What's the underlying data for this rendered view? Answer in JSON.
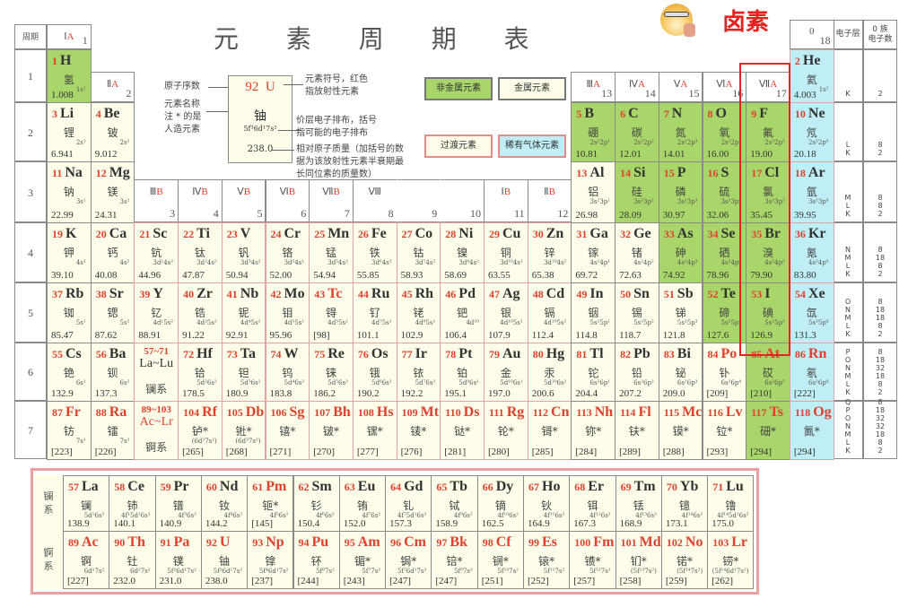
{
  "title": "元 素 周 期 表",
  "annotation": {
    "label": "卤素",
    "color": "#e8231f",
    "emoji": "doge-pointing-emoji"
  },
  "colors": {
    "nonmetal": "#a8d66a",
    "metal": "#fdfdea",
    "noble_gas": "#bfeef6",
    "radioactive_text": "#e0402e",
    "transition_border": "#e7a3a3",
    "highlight": "#e8231f"
  },
  "period_header": "周期",
  "periods": [
    "1",
    "2",
    "3",
    "4",
    "5",
    "6",
    "7"
  ],
  "shell_header": "电子层",
  "electron_count_header": "0 族\n电子数",
  "shells": [
    {
      "layers": "K",
      "counts": "2"
    },
    {
      "layers": "L\nK",
      "counts": "8\n2"
    },
    {
      "layers": "M\nL\nK",
      "counts": "8\n8\n2"
    },
    {
      "layers": "N\nM\nL\nK",
      "counts": "8\n18\n8\n2"
    },
    {
      "layers": "O\nN\nM\nL\nK",
      "counts": "8\n18\n18\n8\n2"
    },
    {
      "layers": "P\nO\nN\nM\nL\nK",
      "counts": "8\n18\n32\n18\n8\n2"
    },
    {
      "layers": "Q\nP\nO\nN\nM\nL\nK",
      "counts": "8\n18\n32\n32\n18\n8\n2"
    }
  ],
  "groups": [
    {
      "roman": "Ⅰ",
      "letter": "A",
      "num": "1"
    },
    {
      "roman": "Ⅱ",
      "letter": "A",
      "num": "2"
    },
    {
      "roman": "Ⅲ",
      "letter": "B",
      "num": "3"
    },
    {
      "roman": "Ⅳ",
      "letter": "B",
      "num": "4"
    },
    {
      "roman": "Ⅴ",
      "letter": "B",
      "num": "5"
    },
    {
      "roman": "Ⅵ",
      "letter": "B",
      "num": "6"
    },
    {
      "roman": "Ⅶ",
      "letter": "B",
      "num": "7"
    },
    {
      "roman": "Ⅷ",
      "letter": "",
      "num": "8"
    },
    {
      "roman": "",
      "letter": "",
      "num": "9"
    },
    {
      "roman": "",
      "letter": "",
      "num": "10"
    },
    {
      "roman": "Ⅰ",
      "letter": "B",
      "num": "11"
    },
    {
      "roman": "Ⅱ",
      "letter": "B",
      "num": "12"
    },
    {
      "roman": "Ⅲ",
      "letter": "A",
      "num": "13"
    },
    {
      "roman": "Ⅳ",
      "letter": "A",
      "num": "14"
    },
    {
      "roman": "Ⅴ",
      "letter": "A",
      "num": "15"
    },
    {
      "roman": "Ⅵ",
      "letter": "A",
      "num": "16"
    },
    {
      "roman": "Ⅶ",
      "letter": "A",
      "num": "17"
    },
    {
      "roman": "0",
      "letter": "",
      "num": "18"
    }
  ],
  "legend": {
    "sample": {
      "z": "92",
      "symbol": "U",
      "name": "铀",
      "config": "5f³6d¹7s²",
      "mass": "238.0"
    },
    "label_z": "原子序数",
    "label_name": "元素名称\n注 * 的是\n人造元素",
    "label_symbol": "元素符号，红色\n指放射性元素",
    "label_config": "价层电子排布，括号\n指可能的电子排布",
    "label_mass": "相对原子质量（加括号的数\n据为该放射性元素半衰期最\n长同位素的质量数）",
    "nonmetal": "非金属元素",
    "metal": "金属元素",
    "transition": "过渡元素",
    "noble": "稀有气体元素"
  },
  "elements": [
    {
      "z": "1",
      "s": "H",
      "n": "氢",
      "c": "1s¹",
      "m": "1.008",
      "p": 1,
      "g": 1,
      "cat": "n"
    },
    {
      "z": "2",
      "s": "He",
      "n": "氦",
      "c": "1s²",
      "m": "4.003",
      "p": 1,
      "g": 18,
      "cat": "g"
    },
    {
      "z": "3",
      "s": "Li",
      "n": "锂",
      "c": "2s¹",
      "m": "6.941",
      "p": 2,
      "g": 1,
      "cat": "m"
    },
    {
      "z": "4",
      "s": "Be",
      "n": "铍",
      "c": "2s²",
      "m": "9.012",
      "p": 2,
      "g": 2,
      "cat": "m"
    },
    {
      "z": "5",
      "s": "B",
      "n": "硼",
      "c": "2s²2p¹",
      "m": "10.81",
      "p": 2,
      "g": 13,
      "cat": "n"
    },
    {
      "z": "6",
      "s": "C",
      "n": "碳",
      "c": "2s²2p²",
      "m": "12.01",
      "p": 2,
      "g": 14,
      "cat": "n"
    },
    {
      "z": "7",
      "s": "N",
      "n": "氮",
      "c": "2s²2p³",
      "m": "14.01",
      "p": 2,
      "g": 15,
      "cat": "n"
    },
    {
      "z": "8",
      "s": "O",
      "n": "氧",
      "c": "2s²2p⁴",
      "m": "16.00",
      "p": 2,
      "g": 16,
      "cat": "n"
    },
    {
      "z": "9",
      "s": "F",
      "n": "氟",
      "c": "2s²2p⁵",
      "m": "19.00",
      "p": 2,
      "g": 17,
      "cat": "n"
    },
    {
      "z": "10",
      "s": "Ne",
      "n": "氖",
      "c": "2s²2p⁶",
      "m": "20.18",
      "p": 2,
      "g": 18,
      "cat": "g"
    },
    {
      "z": "11",
      "s": "Na",
      "n": "钠",
      "c": "3s¹",
      "m": "22.99",
      "p": 3,
      "g": 1,
      "cat": "m"
    },
    {
      "z": "12",
      "s": "Mg",
      "n": "镁",
      "c": "3s²",
      "m": "24.31",
      "p": 3,
      "g": 2,
      "cat": "m"
    },
    {
      "z": "13",
      "s": "Al",
      "n": "铝",
      "c": "3s²3p¹",
      "m": "26.98",
      "p": 3,
      "g": 13,
      "cat": "m"
    },
    {
      "z": "14",
      "s": "Si",
      "n": "硅",
      "c": "3s²3p²",
      "m": "28.09",
      "p": 3,
      "g": 14,
      "cat": "n"
    },
    {
      "z": "15",
      "s": "P",
      "n": "磷",
      "c": "3s²3p³",
      "m": "30.97",
      "p": 3,
      "g": 15,
      "cat": "n"
    },
    {
      "z": "16",
      "s": "S",
      "n": "硫",
      "c": "3s²3p⁴",
      "m": "32.06",
      "p": 3,
      "g": 16,
      "cat": "n"
    },
    {
      "z": "17",
      "s": "Cl",
      "n": "氯",
      "c": "3s²3p⁵",
      "m": "35.45",
      "p": 3,
      "g": 17,
      "cat": "n"
    },
    {
      "z": "18",
      "s": "Ar",
      "n": "氩",
      "c": "3s²3p⁶",
      "m": "39.95",
      "p": 3,
      "g": 18,
      "cat": "g"
    },
    {
      "z": "19",
      "s": "K",
      "n": "钾",
      "c": "4s¹",
      "m": "39.10",
      "p": 4,
      "g": 1,
      "cat": "m"
    },
    {
      "z": "20",
      "s": "Ca",
      "n": "钙",
      "c": "4s²",
      "m": "40.08",
      "p": 4,
      "g": 2,
      "cat": "m"
    },
    {
      "z": "21",
      "s": "Sc",
      "n": "钪",
      "c": "3d¹4s²",
      "m": "44.96",
      "p": 4,
      "g": 3,
      "cat": "t"
    },
    {
      "z": "22",
      "s": "Ti",
      "n": "钛",
      "c": "3d²4s²",
      "m": "47.87",
      "p": 4,
      "g": 4,
      "cat": "t"
    },
    {
      "z": "23",
      "s": "V",
      "n": "钒",
      "c": "3d³4s²",
      "m": "50.94",
      "p": 4,
      "g": 5,
      "cat": "t"
    },
    {
      "z": "24",
      "s": "Cr",
      "n": "铬",
      "c": "3d⁵4s¹",
      "m": "52.00",
      "p": 4,
      "g": 6,
      "cat": "t"
    },
    {
      "z": "25",
      "s": "Mn",
      "n": "锰",
      "c": "3d⁵4s²",
      "m": "54.94",
      "p": 4,
      "g": 7,
      "cat": "t"
    },
    {
      "z": "26",
      "s": "Fe",
      "n": "铁",
      "c": "3d⁶4s²",
      "m": "55.85",
      "p": 4,
      "g": 8,
      "cat": "t"
    },
    {
      "z": "27",
      "s": "Co",
      "n": "钴",
      "c": "3d⁷4s²",
      "m": "58.93",
      "p": 4,
      "g": 9,
      "cat": "t"
    },
    {
      "z": "28",
      "s": "Ni",
      "n": "镍",
      "c": "3d⁸4s²",
      "m": "58.69",
      "p": 4,
      "g": 10,
      "cat": "t"
    },
    {
      "z": "29",
      "s": "Cu",
      "n": "铜",
      "c": "3d¹⁰4s¹",
      "m": "63.55",
      "p": 4,
      "g": 11,
      "cat": "t"
    },
    {
      "z": "30",
      "s": "Zn",
      "n": "锌",
      "c": "3d¹⁰4s²",
      "m": "65.38",
      "p": 4,
      "g": 12,
      "cat": "t"
    },
    {
      "z": "31",
      "s": "Ga",
      "n": "镓",
      "c": "4s²4p¹",
      "m": "69.72",
      "p": 4,
      "g": 13,
      "cat": "m"
    },
    {
      "z": "32",
      "s": "Ge",
      "n": "锗",
      "c": "4s²4p²",
      "m": "72.63",
      "p": 4,
      "g": 14,
      "cat": "m"
    },
    {
      "z": "33",
      "s": "As",
      "n": "砷",
      "c": "4s²4p³",
      "m": "74.92",
      "p": 4,
      "g": 15,
      "cat": "n"
    },
    {
      "z": "34",
      "s": "Se",
      "n": "硒",
      "c": "4s²4p⁴",
      "m": "78.96",
      "p": 4,
      "g": 16,
      "cat": "n"
    },
    {
      "z": "35",
      "s": "Br",
      "n": "溴",
      "c": "4s²4p⁵",
      "m": "79.90",
      "p": 4,
      "g": 17,
      "cat": "n"
    },
    {
      "z": "36",
      "s": "Kr",
      "n": "氪",
      "c": "4s²4p⁶",
      "m": "83.80",
      "p": 4,
      "g": 18,
      "cat": "g"
    },
    {
      "z": "37",
      "s": "Rb",
      "n": "铷",
      "c": "5s¹",
      "m": "85.47",
      "p": 5,
      "g": 1,
      "cat": "m"
    },
    {
      "z": "38",
      "s": "Sr",
      "n": "锶",
      "c": "5s²",
      "m": "87.62",
      "p": 5,
      "g": 2,
      "cat": "m"
    },
    {
      "z": "39",
      "s": "Y",
      "n": "钇",
      "c": "4d¹5s²",
      "m": "88.91",
      "p": 5,
      "g": 3,
      "cat": "t"
    },
    {
      "z": "40",
      "s": "Zr",
      "n": "锆",
      "c": "4d²5s²",
      "m": "91.22",
      "p": 5,
      "g": 4,
      "cat": "t"
    },
    {
      "z": "41",
      "s": "Nb",
      "n": "铌",
      "c": "4d⁴5s¹",
      "m": "92.91",
      "p": 5,
      "g": 5,
      "cat": "t"
    },
    {
      "z": "42",
      "s": "Mo",
      "n": "钼",
      "c": "4d⁵5s¹",
      "m": "95.96",
      "p": 5,
      "g": 6,
      "cat": "t"
    },
    {
      "z": "43",
      "s": "Tc",
      "n": "锝",
      "c": "4d⁵5s²",
      "m": "[98]",
      "p": 5,
      "g": 7,
      "cat": "t",
      "r": 1
    },
    {
      "z": "44",
      "s": "Ru",
      "n": "钌",
      "c": "4d⁷5s¹",
      "m": "101.1",
      "p": 5,
      "g": 8,
      "cat": "t"
    },
    {
      "z": "45",
      "s": "Rh",
      "n": "铑",
      "c": "4d⁸5s¹",
      "m": "102.9",
      "p": 5,
      "g": 9,
      "cat": "t"
    },
    {
      "z": "46",
      "s": "Pd",
      "n": "钯",
      "c": "4d¹⁰",
      "m": "106.4",
      "p": 5,
      "g": 10,
      "cat": "t"
    },
    {
      "z": "47",
      "s": "Ag",
      "n": "银",
      "c": "4d¹⁰5s¹",
      "m": "107.9",
      "p": 5,
      "g": 11,
      "cat": "t"
    },
    {
      "z": "48",
      "s": "Cd",
      "n": "镉",
      "c": "4d¹⁰5s²",
      "m": "112.4",
      "p": 5,
      "g": 12,
      "cat": "t"
    },
    {
      "z": "49",
      "s": "In",
      "n": "铟",
      "c": "5s²5p¹",
      "m": "114.8",
      "p": 5,
      "g": 13,
      "cat": "m"
    },
    {
      "z": "50",
      "s": "Sn",
      "n": "锡",
      "c": "5s²5p²",
      "m": "118.7",
      "p": 5,
      "g": 14,
      "cat": "m"
    },
    {
      "z": "51",
      "s": "Sb",
      "n": "锑",
      "c": "5s²5p³",
      "m": "121.8",
      "p": 5,
      "g": 15,
      "cat": "m"
    },
    {
      "z": "52",
      "s": "Te",
      "n": "碲",
      "c": "5s²5p⁴",
      "m": "127.6",
      "p": 5,
      "g": 16,
      "cat": "n"
    },
    {
      "z": "53",
      "s": "I",
      "n": "碘",
      "c": "5s²5p⁵",
      "m": "126.9",
      "p": 5,
      "g": 17,
      "cat": "n"
    },
    {
      "z": "54",
      "s": "Xe",
      "n": "氙",
      "c": "5s²5p⁶",
      "m": "131.3",
      "p": 5,
      "g": 18,
      "cat": "g"
    },
    {
      "z": "55",
      "s": "Cs",
      "n": "铯",
      "c": "6s¹",
      "m": "132.9",
      "p": 6,
      "g": 1,
      "cat": "m"
    },
    {
      "z": "56",
      "s": "Ba",
      "n": "钡",
      "c": "6s²",
      "m": "137.3",
      "p": 6,
      "g": 2,
      "cat": "m"
    },
    {
      "z": "57~71",
      "s": "La~Lu",
      "n": "镧系",
      "c": "",
      "m": "",
      "p": 6,
      "g": 3,
      "cat": "t",
      "series": 1
    },
    {
      "z": "72",
      "s": "Hf",
      "n": "铪",
      "c": "5d²6s²",
      "m": "178.5",
      "p": 6,
      "g": 4,
      "cat": "t"
    },
    {
      "z": "73",
      "s": "Ta",
      "n": "钽",
      "c": "5d³6s²",
      "m": "180.9",
      "p": 6,
      "g": 5,
      "cat": "t"
    },
    {
      "z": "74",
      "s": "W",
      "n": "钨",
      "c": "5d⁴6s²",
      "m": "183.8",
      "p": 6,
      "g": 6,
      "cat": "t"
    },
    {
      "z": "75",
      "s": "Re",
      "n": "铼",
      "c": "5d⁵6s²",
      "m": "186.2",
      "p": 6,
      "g": 7,
      "cat": "t"
    },
    {
      "z": "76",
      "s": "Os",
      "n": "锇",
      "c": "5d⁶6s²",
      "m": "190.2",
      "p": 6,
      "g": 8,
      "cat": "t"
    },
    {
      "z": "77",
      "s": "Ir",
      "n": "铱",
      "c": "5d⁷6s²",
      "m": "192.2",
      "p": 6,
      "g": 9,
      "cat": "t"
    },
    {
      "z": "78",
      "s": "Pt",
      "n": "铂",
      "c": "5d⁹6s¹",
      "m": "195.1",
      "p": 6,
      "g": 10,
      "cat": "t"
    },
    {
      "z": "79",
      "s": "Au",
      "n": "金",
      "c": "5d¹⁰6s¹",
      "m": "197.0",
      "p": 6,
      "g": 11,
      "cat": "t"
    },
    {
      "z": "80",
      "s": "Hg",
      "n": "汞",
      "c": "5d¹⁰6s²",
      "m": "200.6",
      "p": 6,
      "g": 12,
      "cat": "t"
    },
    {
      "z": "81",
      "s": "Tl",
      "n": "铊",
      "c": "6s²6p¹",
      "m": "204.4",
      "p": 6,
      "g": 13,
      "cat": "m"
    },
    {
      "z": "82",
      "s": "Pb",
      "n": "铅",
      "c": "6s²6p²",
      "m": "207.2",
      "p": 6,
      "g": 14,
      "cat": "m"
    },
    {
      "z": "83",
      "s": "Bi",
      "n": "铋",
      "c": "6s²6p³",
      "m": "209.0",
      "p": 6,
      "g": 15,
      "cat": "m"
    },
    {
      "z": "84",
      "s": "Po",
      "n": "钋",
      "c": "6s²6p⁴",
      "m": "[209]",
      "p": 6,
      "g": 16,
      "cat": "m",
      "r": 1
    },
    {
      "z": "85",
      "s": "At",
      "n": "砹",
      "c": "6s²6p⁵",
      "m": "[210]",
      "p": 6,
      "g": 17,
      "cat": "n",
      "r": 1
    },
    {
      "z": "86",
      "s": "Rn",
      "n": "氡",
      "c": "6s²6p⁶",
      "m": "[222]",
      "p": 6,
      "g": 18,
      "cat": "g",
      "r": 1
    },
    {
      "z": "87",
      "s": "Fr",
      "n": "钫",
      "c": "7s¹",
      "m": "[223]",
      "p": 7,
      "g": 1,
      "cat": "m",
      "r": 1
    },
    {
      "z": "88",
      "s": "Ra",
      "n": "镭",
      "c": "7s²",
      "m": "[226]",
      "p": 7,
      "g": 2,
      "cat": "m",
      "r": 1
    },
    {
      "z": "89~103",
      "s": "Ac~Lr",
      "n": "锕系",
      "c": "",
      "m": "",
      "p": 7,
      "g": 3,
      "cat": "t",
      "series": 1,
      "r": 1
    },
    {
      "z": "104",
      "s": "Rf",
      "n": "𬬻*",
      "c": "(6d²7s²)",
      "m": "[265]",
      "p": 7,
      "g": 4,
      "cat": "t",
      "r": 1
    },
    {
      "z": "105",
      "s": "Db",
      "n": "𬭊*",
      "c": "(6d³7s²)",
      "m": "[268]",
      "p": 7,
      "g": 5,
      "cat": "t",
      "r": 1
    },
    {
      "z": "106",
      "s": "Sg",
      "n": "𬭳*",
      "c": "",
      "m": "[271]",
      "p": 7,
      "g": 6,
      "cat": "t",
      "r": 1
    },
    {
      "z": "107",
      "s": "Bh",
      "n": "𬭛*",
      "c": "",
      "m": "[270]",
      "p": 7,
      "g": 7,
      "cat": "t",
      "r": 1
    },
    {
      "z": "108",
      "s": "Hs",
      "n": "𬭶*",
      "c": "",
      "m": "[277]",
      "p": 7,
      "g": 8,
      "cat": "t",
      "r": 1
    },
    {
      "z": "109",
      "s": "Mt",
      "n": "鿏*",
      "c": "",
      "m": "[276]",
      "p": 7,
      "g": 9,
      "cat": "t",
      "r": 1
    },
    {
      "z": "110",
      "s": "Ds",
      "n": "𫟼*",
      "c": "",
      "m": "[281]",
      "p": 7,
      "g": 10,
      "cat": "t",
      "r": 1
    },
    {
      "z": "111",
      "s": "Rg",
      "n": "𬬭*",
      "c": "",
      "m": "[280]",
      "p": 7,
      "g": 11,
      "cat": "t",
      "r": 1
    },
    {
      "z": "112",
      "s": "Cn",
      "n": "鿔*",
      "c": "",
      "m": "[285]",
      "p": 7,
      "g": 12,
      "cat": "t",
      "r": 1
    },
    {
      "z": "113",
      "s": "Nh",
      "n": "鿭*",
      "c": "",
      "m": "[284]",
      "p": 7,
      "g": 13,
      "cat": "m",
      "r": 1
    },
    {
      "z": "114",
      "s": "Fl",
      "n": "𫓧*",
      "c": "",
      "m": "[289]",
      "p": 7,
      "g": 14,
      "cat": "m",
      "r": 1
    },
    {
      "z": "115",
      "s": "Mc",
      "n": "镆*",
      "c": "",
      "m": "[288]",
      "p": 7,
      "g": 15,
      "cat": "m",
      "r": 1
    },
    {
      "z": "116",
      "s": "Lv",
      "n": "𫟷*",
      "c": "",
      "m": "[293]",
      "p": 7,
      "g": 16,
      "cat": "m",
      "r": 1
    },
    {
      "z": "117",
      "s": "Ts",
      "n": "鿬*",
      "c": "",
      "m": "[294]",
      "p": 7,
      "g": 17,
      "cat": "n",
      "r": 1
    },
    {
      "z": "118",
      "s": "Og",
      "n": "鿫*",
      "c": "",
      "m": "[294]",
      "p": 7,
      "g": 18,
      "cat": "g",
      "r": 1
    }
  ],
  "lanthanide_label": "镧\n系",
  "actinide_label": "锕\n系",
  "lanthanides": [
    {
      "z": "57",
      "s": "La",
      "n": "镧",
      "c": "5d¹6s²",
      "m": "138.9"
    },
    {
      "z": "58",
      "s": "Ce",
      "n": "铈",
      "c": "4f¹5d¹6s²",
      "m": "140.1"
    },
    {
      "z": "59",
      "s": "Pr",
      "n": "镨",
      "c": "4f³6s²",
      "m": "140.9"
    },
    {
      "z": "60",
      "s": "Nd",
      "n": "钕",
      "c": "4f⁴6s²",
      "m": "144.2"
    },
    {
      "z": "61",
      "s": "Pm",
      "n": "钷*",
      "c": "4f⁵6s²",
      "m": "[145]",
      "r": 1
    },
    {
      "z": "62",
      "s": "Sm",
      "n": "钐",
      "c": "4f⁶6s²",
      "m": "150.4"
    },
    {
      "z": "63",
      "s": "Eu",
      "n": "铕",
      "c": "4f⁷6s²",
      "m": "152.0"
    },
    {
      "z": "64",
      "s": "Gd",
      "n": "钆",
      "c": "4f⁷5d¹6s²",
      "m": "157.3"
    },
    {
      "z": "65",
      "s": "Tb",
      "n": "铽",
      "c": "4f⁹6s²",
      "m": "158.9"
    },
    {
      "z": "66",
      "s": "Dy",
      "n": "镝",
      "c": "4f¹⁰6s²",
      "m": "162.5"
    },
    {
      "z": "67",
      "s": "Ho",
      "n": "钬",
      "c": "4f¹¹6s²",
      "m": "164.9"
    },
    {
      "z": "68",
      "s": "Er",
      "n": "铒",
      "c": "4f¹²6s²",
      "m": "167.3"
    },
    {
      "z": "69",
      "s": "Tm",
      "n": "铥",
      "c": "4f¹³6s²",
      "m": "168.9"
    },
    {
      "z": "70",
      "s": "Yb",
      "n": "镱",
      "c": "4f¹⁴6s²",
      "m": "173.1"
    },
    {
      "z": "71",
      "s": "Lu",
      "n": "镥",
      "c": "4f¹⁴5d¹6s²",
      "m": "175.0"
    }
  ],
  "actinides": [
    {
      "z": "89",
      "s": "Ac",
      "n": "锕",
      "c": "6d¹7s²",
      "m": "[227]",
      "r": 1
    },
    {
      "z": "90",
      "s": "Th",
      "n": "钍",
      "c": "6d²7s²",
      "m": "232.0",
      "r": 1
    },
    {
      "z": "91",
      "s": "Pa",
      "n": "镤",
      "c": "5f²6d¹7s²",
      "m": "231.0",
      "r": 1
    },
    {
      "z": "92",
      "s": "U",
      "n": "铀",
      "c": "5f³6d¹7s²",
      "m": "238.0",
      "r": 1
    },
    {
      "z": "93",
      "s": "Np",
      "n": "镎",
      "c": "5f⁴6d¹7s²",
      "m": "[237]",
      "r": 1
    },
    {
      "z": "94",
      "s": "Pu",
      "n": "钚",
      "c": "5f⁶7s²",
      "m": "[244]",
      "r": 1
    },
    {
      "z": "95",
      "s": "Am",
      "n": "镅*",
      "c": "5f⁷7s²",
      "m": "[243]",
      "r": 1
    },
    {
      "z": "96",
      "s": "Cm",
      "n": "锔*",
      "c": "5f⁷6d¹7s²",
      "m": "[247]",
      "r": 1
    },
    {
      "z": "97",
      "s": "Bk",
      "n": "锫*",
      "c": "5f⁹7s²",
      "m": "[247]",
      "r": 1
    },
    {
      "z": "98",
      "s": "Cf",
      "n": "锎*",
      "c": "5f¹⁰7s²",
      "m": "[251]",
      "r": 1
    },
    {
      "z": "99",
      "s": "Es",
      "n": "锿*",
      "c": "5f¹¹7s²",
      "m": "[252]",
      "r": 1
    },
    {
      "z": "100",
      "s": "Fm",
      "n": "镄*",
      "c": "5f¹²7s²",
      "m": "[257]",
      "r": 1
    },
    {
      "z": "101",
      "s": "Md",
      "n": "钔*",
      "c": "(5f¹³7s²)",
      "m": "[258]",
      "r": 1
    },
    {
      "z": "102",
      "s": "No",
      "n": "锘*",
      "c": "(5f¹⁴7s²)",
      "m": "[259]",
      "r": 1
    },
    {
      "z": "103",
      "s": "Lr",
      "n": "铹*",
      "c": "(5f¹⁴6d¹7s²)",
      "m": "[262]",
      "r": 1
    }
  ]
}
